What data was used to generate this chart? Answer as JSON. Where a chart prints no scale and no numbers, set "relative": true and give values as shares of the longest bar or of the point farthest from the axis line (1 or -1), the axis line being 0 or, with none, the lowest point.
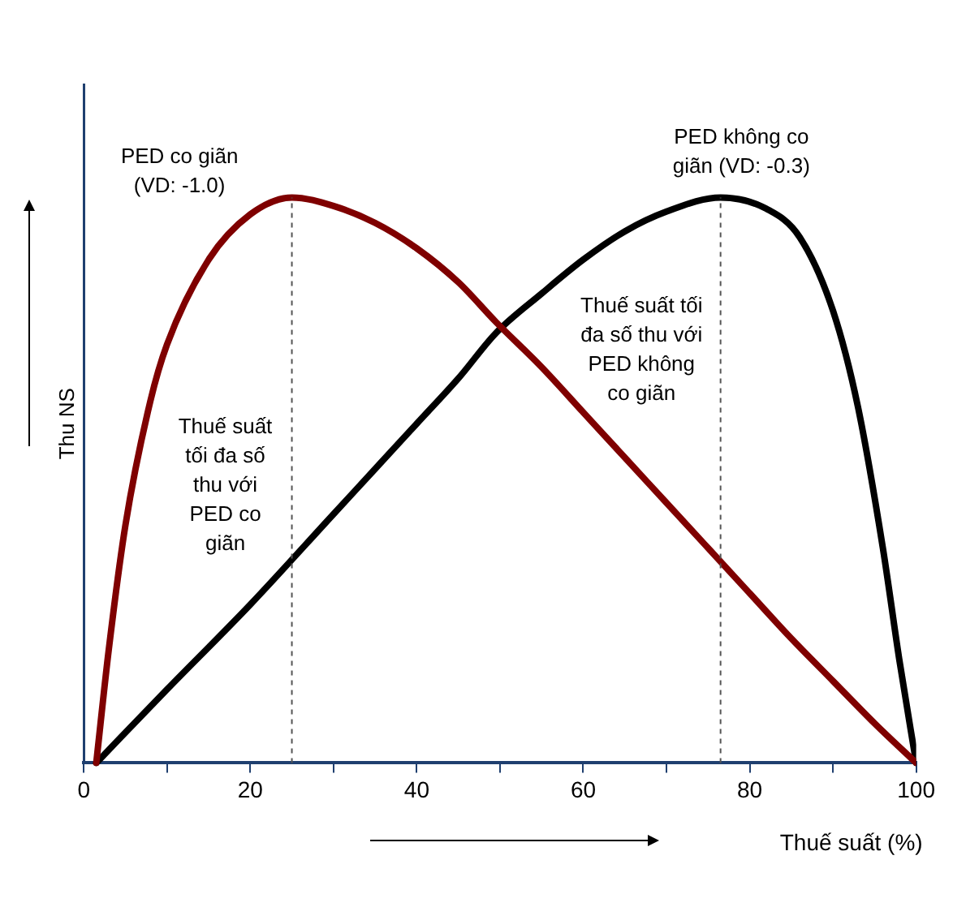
{
  "chart_data": {
    "type": "line",
    "relative": true,
    "xlabel": "Thuế suất (%)",
    "ylabel": "Thu NS",
    "xlim": [
      0,
      100
    ],
    "xticks": [
      0,
      {
        "value": 10,
        "label": null
      },
      20,
      {
        "value": 30,
        "label": null
      },
      40,
      {
        "value": 50,
        "label": null
      },
      60,
      {
        "value": 70,
        "label": null
      },
      80,
      {
        "value": 90,
        "label": null
      },
      100
    ],
    "grid": false,
    "legend": false,
    "marker": "none",
    "line_style": "solid",
    "series": [
      {
        "color": "#7f0000",
        "x": [
          1.5,
          3,
          5,
          8,
          10,
          15,
          20,
          25,
          30,
          35,
          40,
          45,
          49.5,
          55,
          60,
          65,
          70,
          75,
          80,
          85,
          90,
          95,
          100
        ],
        "values": [
          0,
          0.2,
          0.42,
          0.64,
          0.74,
          0.89,
          0.97,
          1,
          0.985,
          0.955,
          0.91,
          0.85,
          0.78,
          0.7,
          0.62,
          0.54,
          0.46,
          0.38,
          0.3,
          0.22,
          0.145,
          0.07,
          0
        ]
      },
      {
        "color": "#000000",
        "x": [
          1.5,
          10,
          20,
          30,
          35,
          40,
          45,
          49.5,
          55,
          60,
          65,
          70,
          76.5,
          82,
          86,
          90,
          93,
          96,
          98,
          100
        ],
        "values": [
          0,
          0.13,
          0.28,
          0.44,
          0.52,
          0.6,
          0.68,
          0.76,
          0.83,
          0.89,
          0.94,
          0.975,
          1,
          0.98,
          0.93,
          0.8,
          0.63,
          0.38,
          0.18,
          0
        ]
      }
    ],
    "ref_lines": [
      {
        "axis": "x",
        "value": 25,
        "color": "#555555",
        "line_style": "dashed"
      },
      {
        "axis": "x",
        "value": 76.5,
        "color": "#555555",
        "line_style": "dashed"
      }
    ],
    "annotations": [
      "PED co giãn\n(VD: -1.0)",
      "PED không co\ngiãn (VD: -0.3)",
      "Thuế suất tối\nđa số thu với\nPED không\nco giãn",
      "Thuế suất\ntối đa số\nthu với\nPED co\ngiãn"
    ]
  }
}
